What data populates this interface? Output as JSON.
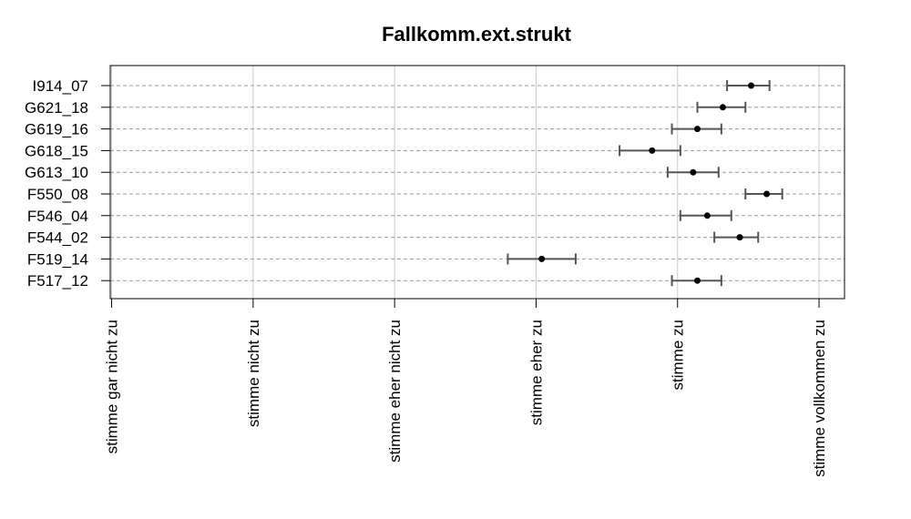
{
  "chart_data": {
    "type": "scatter",
    "title": "Fallkomm.ext.strukt",
    "xlabel": "",
    "ylabel": "",
    "x_tick_labels": [
      "stimme gar nicht zu",
      "stimme nicht zu",
      "stimme eher nicht zu",
      "stimme eher zu",
      "stimme zu",
      "stimme vollkommen zu"
    ],
    "xlim": [
      0.99,
      6.18
    ],
    "grid": true,
    "legend": "none",
    "point_color": "#000000",
    "errorbar_color": "#555555",
    "gridline_color": "#999999",
    "series": [
      {
        "items": [
          {
            "label": "I914_07",
            "mean": 5.52,
            "lower": 5.35,
            "upper": 5.65
          },
          {
            "label": "G621_18",
            "mean": 5.32,
            "lower": 5.14,
            "upper": 5.48
          },
          {
            "label": "G619_16",
            "mean": 5.14,
            "lower": 4.96,
            "upper": 5.31
          },
          {
            "label": "G618_15",
            "mean": 4.82,
            "lower": 4.59,
            "upper": 5.02
          },
          {
            "label": "G613_10",
            "mean": 5.11,
            "lower": 4.93,
            "upper": 5.29
          },
          {
            "label": "F550_08",
            "mean": 5.63,
            "lower": 5.48,
            "upper": 5.74
          },
          {
            "label": "F546_04",
            "mean": 5.21,
            "lower": 5.02,
            "upper": 5.38
          },
          {
            "label": "F544_02",
            "mean": 5.44,
            "lower": 5.26,
            "upper": 5.57
          },
          {
            "label": "F519_14",
            "mean": 4.04,
            "lower": 3.8,
            "upper": 4.28
          },
          {
            "label": "F517_12",
            "mean": 5.14,
            "lower": 4.96,
            "upper": 5.31
          }
        ]
      }
    ]
  }
}
